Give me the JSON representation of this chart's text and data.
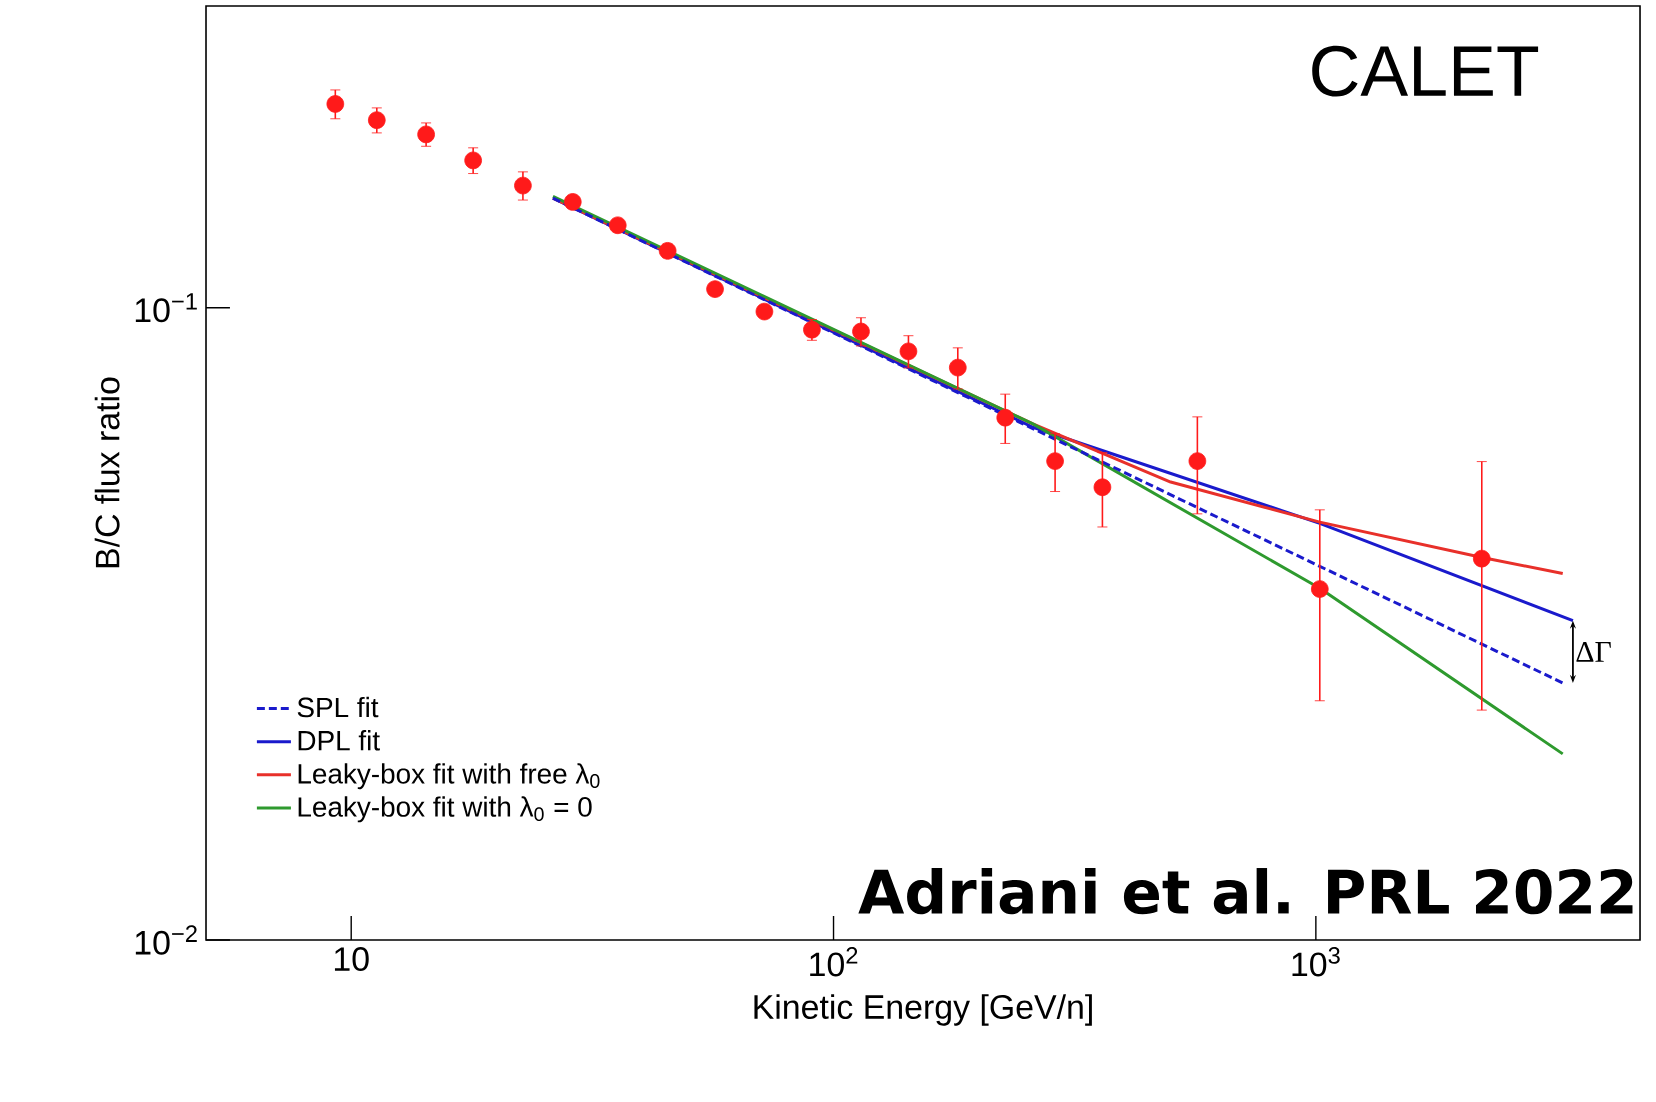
{
  "chart_data": {
    "type": "scatter",
    "xlabel": "Kinetic Energy [GeV/n]",
    "ylabel": "B/C flux ratio",
    "log": "xy",
    "legend": "bottom left",
    "xlim": [
      5,
      4700
    ],
    "ylim": [
      0.01,
      0.3
    ],
    "xticks": [
      10,
      {
        "value": 100,
        "label": "10$^{2}$"
      },
      {
        "value": 1000,
        "label": "10$^{3}$"
      }
    ],
    "yticks": [
      {
        "value": 0.01,
        "label": "10$^{−2}$"
      },
      {
        "value": 0.1,
        "label": "10$^{−1}$"
      }
    ],
    "annotations": [
      "CALET",
      "Adriani et al. PRL 2022",
      "ΔΓ"
    ],
    "series": [
      {
        "name": "SPL fit",
        "type": "line",
        "color": "#1a1acc",
        "line_style": "dashed",
        "marker": "none",
        "x": [
          26.2,
          3250
        ],
        "values": [
          0.149,
          0.0255
        ]
      },
      {
        "name": "DPL fit",
        "type": "line",
        "color": "#1a1acc",
        "line_style": "solid",
        "marker": "none",
        "x": [
          26.2,
          259,
          1019,
          3412
        ],
        "values": [
          0.149,
          0.0647,
          0.0456,
          0.032
        ]
      },
      {
        "name": "Leaky-box fit with free  λ$_{0}$",
        "type": "line",
        "color": "#e8302a",
        "line_style": "solid",
        "marker": "none",
        "x": [
          26.2,
          259,
          500,
          1019,
          2200,
          3250
        ],
        "values": [
          0.149,
          0.0655,
          0.053,
          0.0458,
          0.0403,
          0.038
        ]
      },
      {
        "name": "Leaky-box fit with  λ$_{0}$ = 0",
        "type": "line",
        "color": "#2e9a2e",
        "line_style": "solid",
        "marker": "none",
        "x": [
          26.2,
          259,
          1019,
          3250
        ],
        "values": [
          0.15,
          0.0655,
          0.036,
          0.0197
        ]
      },
      {
        "color": "#ff1a1a",
        "marker": "circle",
        "x": [
          9.27,
          11.3,
          14.3,
          17.9,
          22.7,
          28.8,
          35.7,
          45.3,
          56.8,
          71.9,
          90.2,
          114,
          143,
          181,
          227,
          288,
          361,
          568,
          1019,
          2208
        ],
        "values": [
          0.21,
          0.198,
          0.188,
          0.171,
          0.156,
          0.147,
          0.135,
          0.123,
          0.107,
          0.0986,
          0.0923,
          0.0917,
          0.0853,
          0.0804,
          0.067,
          0.0572,
          0.052,
          0.0572,
          0.0359,
          0.0401
        ],
        "errors": [
          0.011,
          0.009,
          0.008,
          0.008,
          0.008,
          0.003,
          0.003,
          0.003,
          0.002,
          0.002,
          0.0035,
          0.0047,
          0.005,
          0.006,
          0.006,
          0.006,
          0.007,
          0.01,
          0.012,
          0.017
        ]
      }
    ]
  }
}
